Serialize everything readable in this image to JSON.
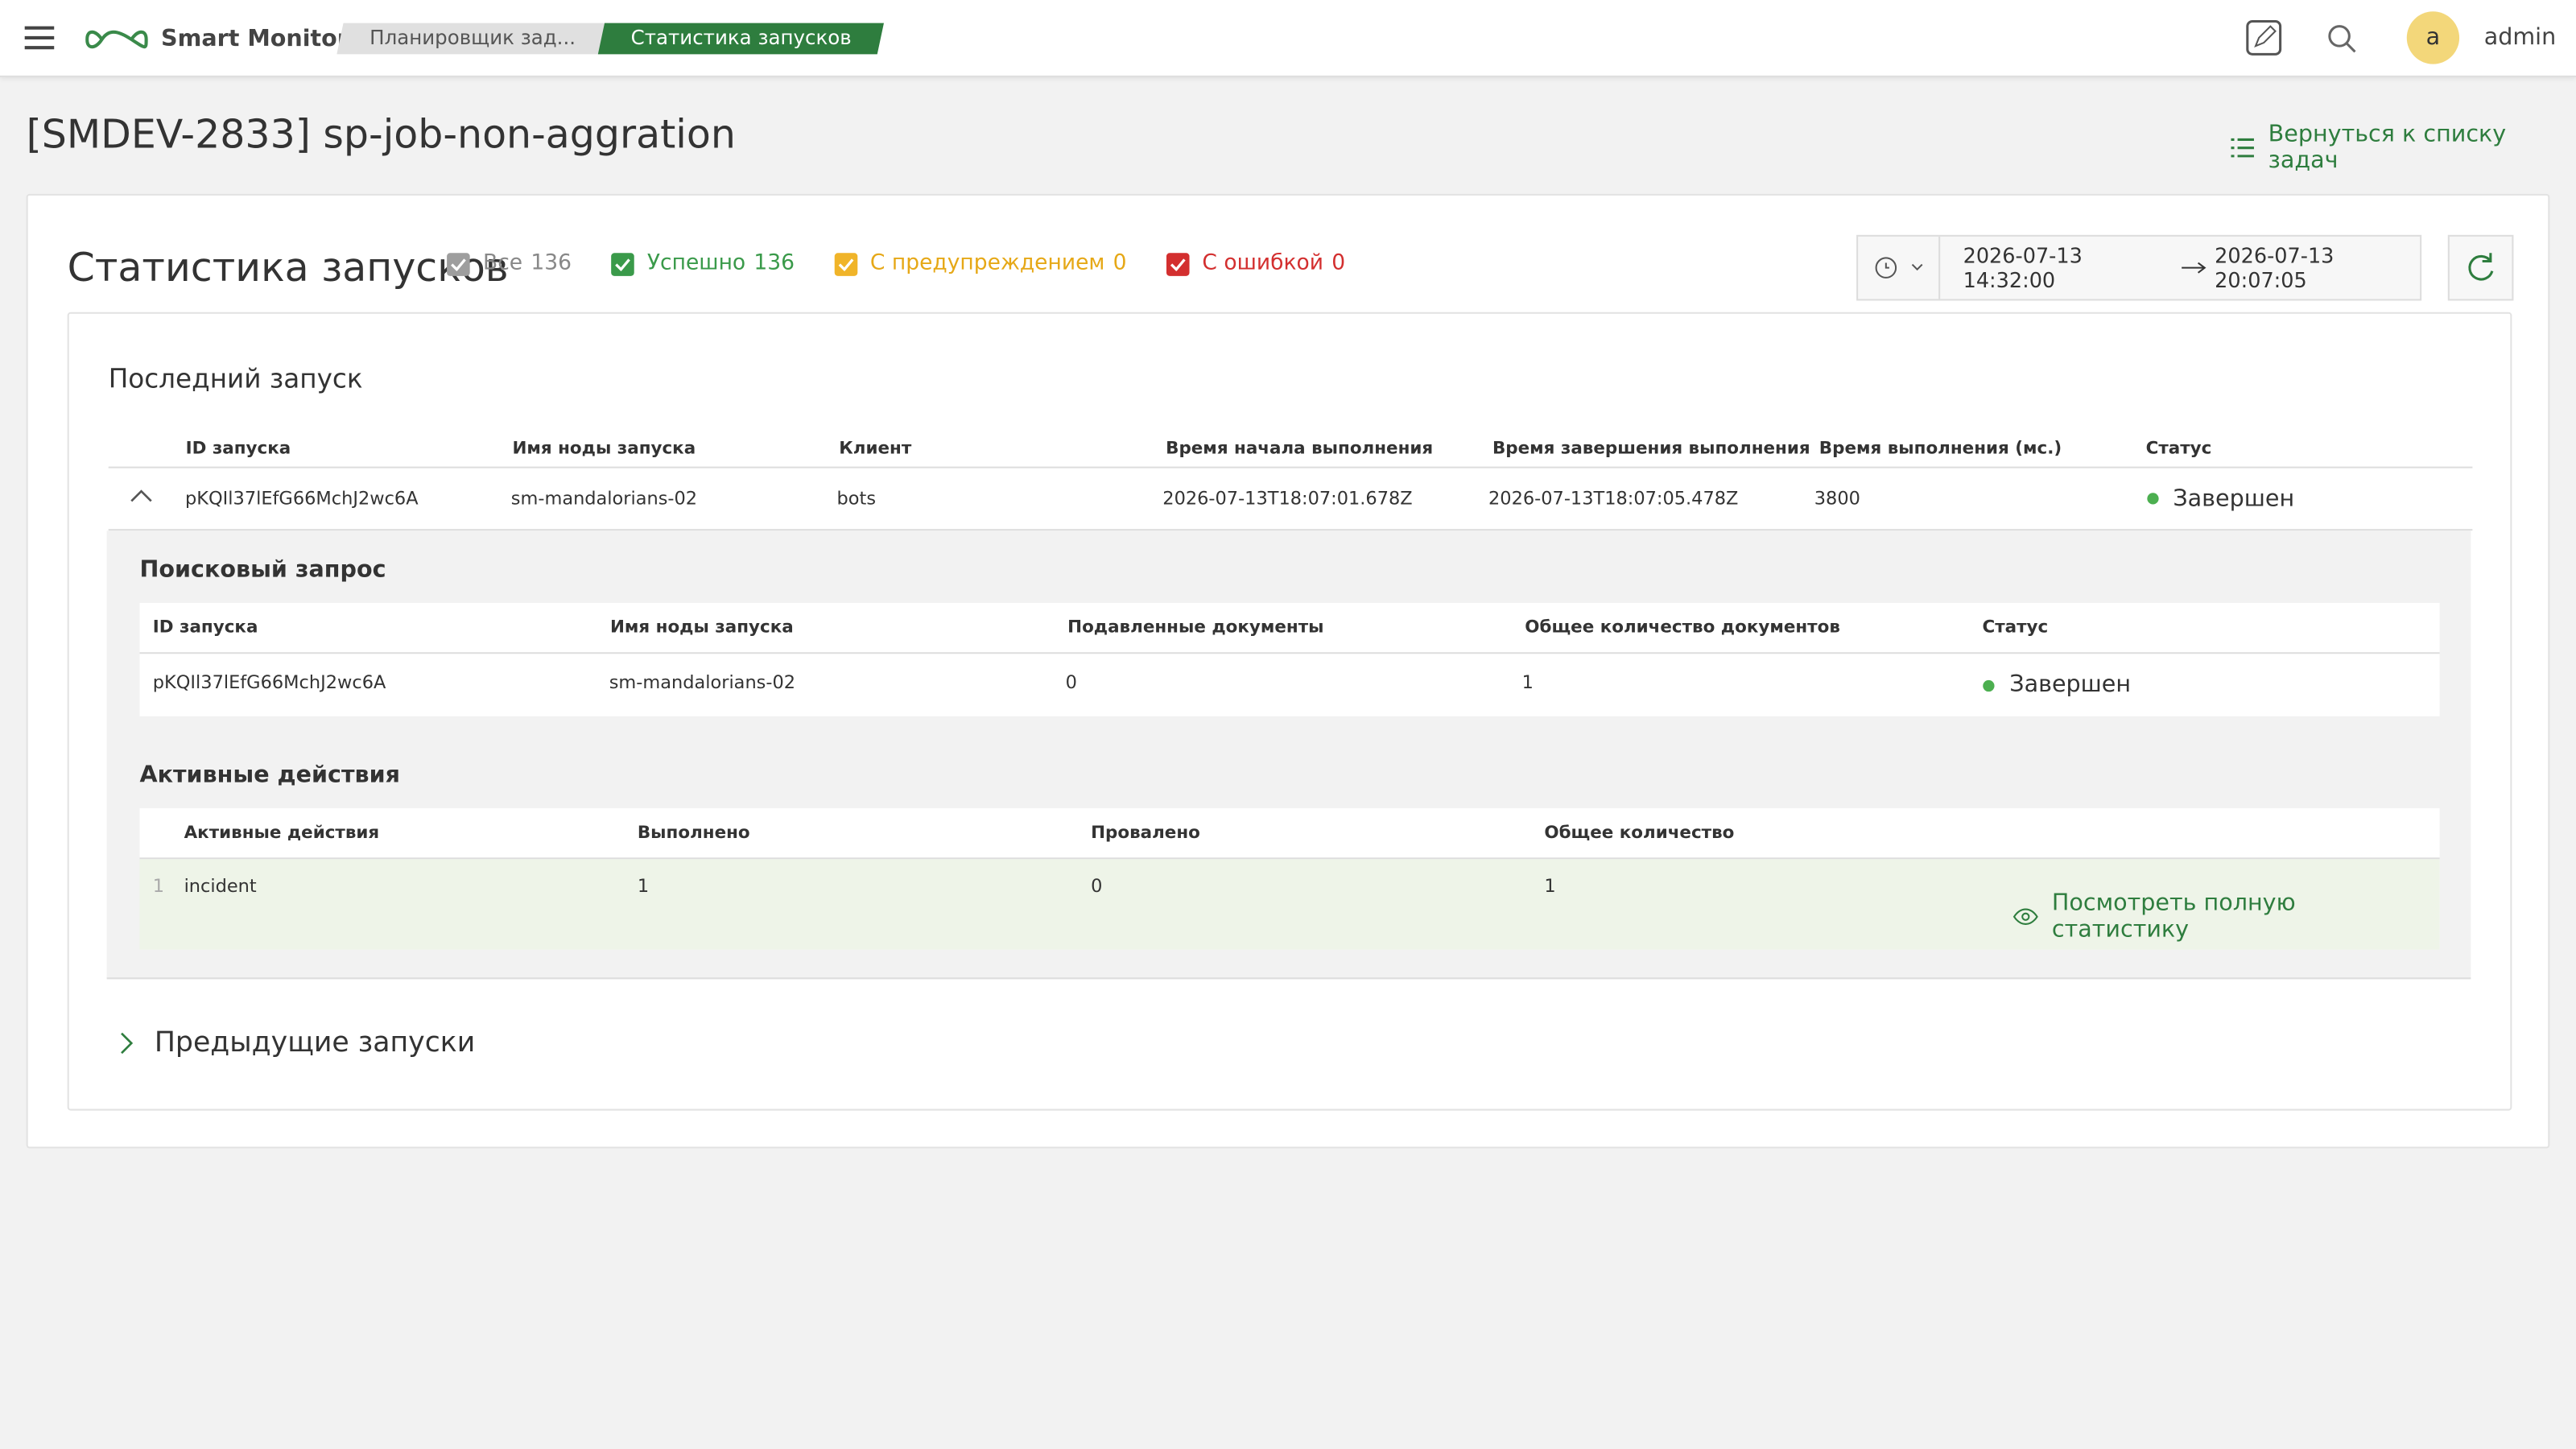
{
  "header": {
    "app_name": "Smart Monitor",
    "breadcrumbs": [
      "Планировщик зад...",
      "Статистика запусков"
    ],
    "user_initial": "a",
    "user_name": "admin"
  },
  "page": {
    "title": "[SMDEV-2833] sp-job-non-aggration",
    "back_link": "Вернуться к списку задач"
  },
  "stats": {
    "title": "Статистика запусков",
    "filters": [
      {
        "label": "Все",
        "count": 136
      },
      {
        "label": "Успешно",
        "count": 136
      },
      {
        "label": "С предупреждением",
        "count": 0
      },
      {
        "label": "С ошибкой",
        "count": 0
      }
    ],
    "date_from": "2026-07-13 14:32:00",
    "date_to": "2026-07-13 20:07:05"
  },
  "last_run": {
    "title": "Последний запуск",
    "columns": [
      "ID запуска",
      "Имя ноды запуска",
      "Клиент",
      "Время начала выполнения",
      "Время завершения выполнения",
      "Время выполнения (мс.)",
      "Статус"
    ],
    "row": [
      "pKQIl37lEfG66MchJ2wc6A",
      "sm-mandalorians-02",
      "bots",
      "2026-07-13T18:07:01.678Z",
      "2026-07-13T18:07:05.478Z",
      3800,
      "Завершен"
    ]
  },
  "search_query": {
    "title": "Поисковый запрос",
    "columns": [
      "ID запуска",
      "Имя ноды запуска",
      "Подавленные документы",
      "Общее количество документов",
      "Статус"
    ],
    "row": [
      "pKQIl37lEfG66MchJ2wc6A",
      "sm-mandalorians-02",
      0,
      1,
      "Завершен"
    ]
  },
  "active_actions": {
    "title": "Активные действия",
    "columns": [
      "Активные действия",
      "Выполнено",
      "Провалено",
      "Общее количество"
    ],
    "rows": [
      {
        "index": 1,
        "cells": [
          "incident",
          1,
          0,
          1
        ]
      }
    ],
    "link": "Посмотреть полную статистику"
  },
  "previous_runs": {
    "title": "Предыдущие запуски"
  }
}
